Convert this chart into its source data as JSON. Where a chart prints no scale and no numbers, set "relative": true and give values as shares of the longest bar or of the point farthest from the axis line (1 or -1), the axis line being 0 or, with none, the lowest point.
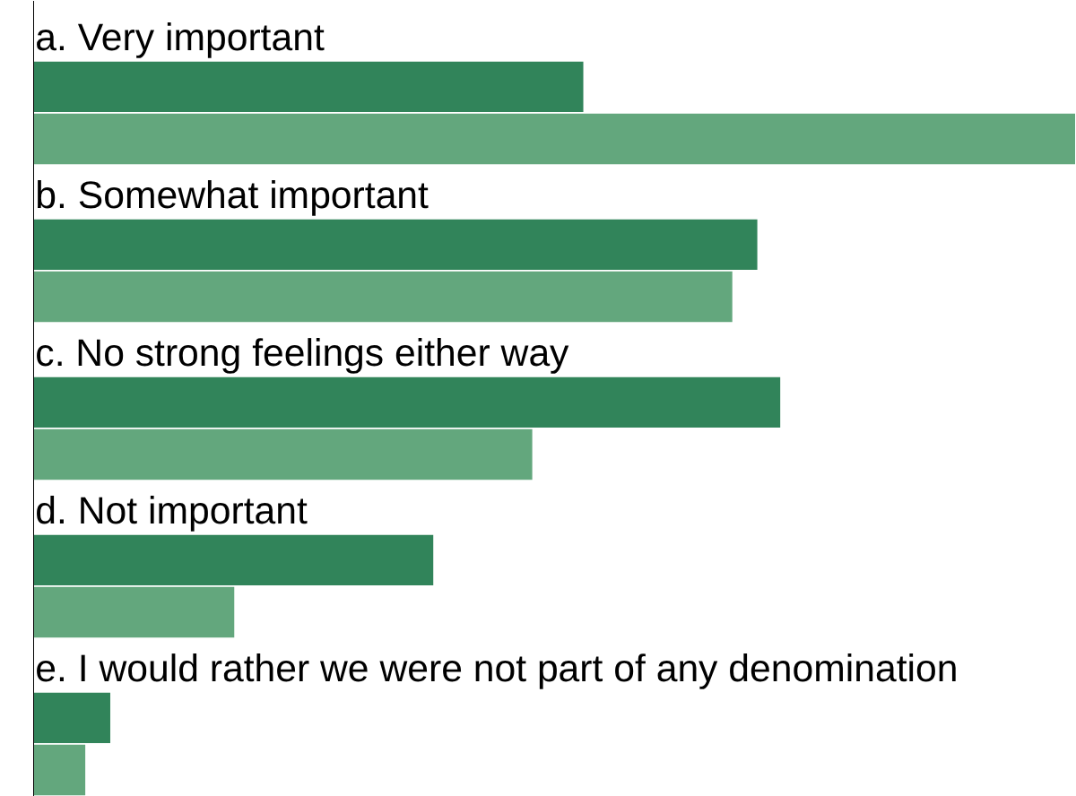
{
  "chart_data": {
    "type": "bar",
    "orientation": "horizontal",
    "relative": true,
    "categories": [
      "a. Very important",
      "b. Somewhat important",
      "c. No strong feelings either way",
      "d. Not important",
      "e. I would rather we were not part of any denomination"
    ],
    "series": [
      {
        "color": "#31845a",
        "values": [
          0.528,
          0.695,
          0.717,
          0.384,
          0.074
        ]
      },
      {
        "color": "#63a77d",
        "values": [
          1,
          0.671,
          0.479,
          0.193,
          0.05
        ]
      }
    ],
    "grid": false
  }
}
